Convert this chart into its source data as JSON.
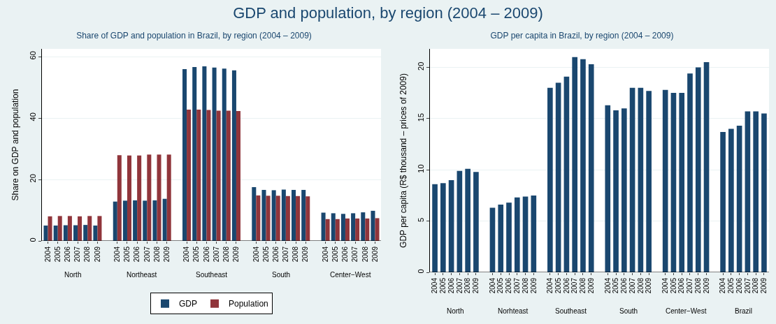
{
  "chart_data": [
    {
      "type": "bar",
      "title": "GDP and population, by region (2004 – 2009)",
      "subtitle": "Share of GDP and population in Brazil, by region (2004 – 2009)",
      "ylabel": "Share on GDP and population",
      "categories": [
        "2004",
        "2005",
        "2006",
        "2007",
        "2008",
        "2009",
        null,
        "2004",
        "2005",
        "2006",
        "2007",
        "2008",
        "2009",
        null,
        "2004",
        "2005",
        "2006",
        "2007",
        "2008",
        "2009",
        null,
        "2004",
        "2005",
        "2006",
        "2007",
        "2008",
        "2009",
        null,
        "2004",
        "2005",
        "2006",
        "2007",
        "2008",
        "2009"
      ],
      "annotations": [
        "North",
        "Northeast",
        "Southeast",
        "South",
        "Center−West"
      ],
      "series": [
        {
          "name": "GDP",
          "color": "#1a476f",
          "values": [
            5.0,
            5.0,
            5.1,
            5.1,
            5.2,
            5.0,
            null,
            12.8,
            13.1,
            13.2,
            13.1,
            13.2,
            13.7,
            null,
            55.9,
            56.6,
            56.8,
            56.4,
            56.1,
            55.5,
            null,
            17.5,
            16.6,
            16.5,
            16.7,
            16.6,
            16.6,
            null,
            9.2,
            9.0,
            8.8,
            9.0,
            9.3,
            9.8
          ]
        },
        {
          "name": "Population",
          "color": "#90353b",
          "values": [
            8.0,
            8.1,
            8.1,
            8.0,
            8.1,
            8.1,
            null,
            27.9,
            27.8,
            27.8,
            28.1,
            28.1,
            28.1,
            null,
            42.7,
            42.7,
            42.6,
            42.4,
            42.4,
            42.3,
            null,
            14.8,
            14.7,
            14.7,
            14.6,
            14.6,
            14.5,
            null,
            7.1,
            7.1,
            7.3,
            7.3,
            7.3,
            7.4
          ]
        }
      ],
      "ylim": [
        0,
        62.5
      ],
      "yticks": [
        0,
        20,
        40,
        60
      ],
      "grid": "y",
      "legend": "bottom"
    },
    {
      "type": "bar",
      "title": "GDP per capita in Brazil, by region (2004 – 2009)",
      "ylabel": "GDP per capita (R$ thousand – prices of 2009)",
      "categories": [
        "2004",
        "2005",
        "2006",
        "2007",
        "2008",
        "2009",
        null,
        "2004",
        "2005",
        "2006",
        "2007",
        "2008",
        "2009",
        null,
        "2004",
        "2005",
        "2006",
        "2007",
        "2008",
        "2009",
        null,
        "2004",
        "2005",
        "2006",
        "2007",
        "2008",
        "2009",
        null,
        "2004",
        "2005",
        "2006",
        "2007",
        "2008",
        "2009",
        null,
        "2004",
        "2005",
        "2006",
        "2007",
        "2008",
        "2009"
      ],
      "annotations": [
        "North",
        "Norhteast",
        "Southeast",
        "South",
        "Center−West",
        "Brazil"
      ],
      "series": [
        {
          "color": "#1a476f",
          "values": [
            8.6,
            8.7,
            9.0,
            9.9,
            10.1,
            9.8,
            null,
            6.3,
            6.6,
            6.8,
            7.3,
            7.4,
            7.5,
            null,
            18.0,
            18.5,
            19.1,
            21.0,
            20.8,
            20.3,
            null,
            16.3,
            15.8,
            16.0,
            18.0,
            18.0,
            17.7,
            null,
            17.8,
            17.5,
            17.5,
            19.4,
            20.0,
            20.5,
            null,
            13.7,
            14.0,
            14.3,
            15.7,
            15.7,
            15.5
          ]
        }
      ],
      "ylim": [
        0,
        21.8
      ],
      "yticks": [
        0,
        5,
        10,
        15,
        20
      ],
      "grid": "y",
      "legend": false
    }
  ]
}
